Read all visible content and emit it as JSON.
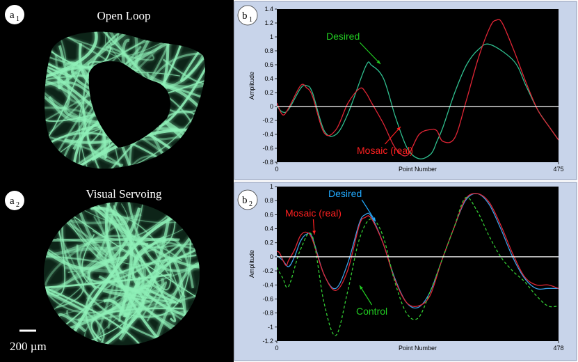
{
  "panels": {
    "a1": {
      "badge": "a",
      "sub": "1",
      "title": "Open Loop"
    },
    "a2": {
      "badge": "a",
      "sub": "2",
      "title": "Visual Servoing"
    },
    "b1": {
      "badge": "b",
      "sub": "1"
    },
    "b2": {
      "badge": "b",
      "sub": "2"
    }
  },
  "scale_bar": {
    "label": "200 µm"
  },
  "colors": {
    "fiber": "#8ff0b8",
    "desired_b1": "#2fbf8f",
    "mosaic": "#e02535",
    "desired_b2": "#3aa0e8",
    "control": "#33cc33",
    "zero_line": "#ffffff",
    "desired_label_b1": "#22cc22",
    "desired_label_b2": "#22aaff",
    "mosaic_label": "#ff2020",
    "control_label": "#22cc22",
    "panel_bg": "#c8d4ea",
    "plot_bg": "#000000"
  },
  "chart_data": [
    {
      "id": "b1",
      "type": "line",
      "xlabel": "Point Number",
      "ylabel": "Amplitude",
      "xlim": [
        0,
        475
      ],
      "ylim": [
        -0.8,
        1.4
      ],
      "yticks": [
        -0.8,
        -0.6,
        -0.4,
        -0.2,
        0,
        0.2,
        0.4,
        0.6,
        0.8,
        1,
        1.2,
        1.4
      ],
      "xticks": [
        0,
        475
      ],
      "annotations": [
        {
          "text": "Desired",
          "color_key": "desired_label_b1"
        },
        {
          "text": "Mosaic (real)",
          "color_key": "mosaic_label"
        }
      ],
      "series": [
        {
          "name": "Desired",
          "color_key": "desired_b1",
          "dash": false,
          "x": [
            0,
            10,
            20,
            40,
            50,
            60,
            80,
            100,
            120,
            150,
            160,
            180,
            200,
            220,
            240,
            260,
            270,
            280,
            300,
            320,
            340,
            360,
            400,
            420,
            440,
            460,
            475
          ],
          "y": [
            0,
            -0.08,
            -0.04,
            0.26,
            0.3,
            0.2,
            -0.35,
            -0.4,
            -0.1,
            0.58,
            0.59,
            0.4,
            -0.15,
            -0.6,
            -0.75,
            -0.68,
            -0.5,
            -0.3,
            0.2,
            0.6,
            0.82,
            0.89,
            0.65,
            0.3,
            -0.05,
            -0.3,
            -0.48
          ]
        },
        {
          "name": "Mosaic (real)",
          "color_key": "mosaic",
          "dash": false,
          "x": [
            0,
            10,
            20,
            40,
            50,
            60,
            80,
            100,
            120,
            140,
            150,
            160,
            180,
            200,
            220,
            240,
            260,
            270,
            280,
            300,
            320,
            340,
            360,
            370,
            380,
            400,
            420,
            440,
            460,
            475
          ],
          "y": [
            0.05,
            -0.12,
            -0.02,
            0.3,
            0.27,
            0.15,
            -0.38,
            -0.33,
            0.05,
            0.26,
            0.2,
            0.05,
            -0.25,
            -0.6,
            -0.7,
            -0.4,
            -0.33,
            -0.35,
            -0.5,
            -0.45,
            0.1,
            0.7,
            1.15,
            1.24,
            1.2,
            0.8,
            0.35,
            -0.05,
            -0.3,
            -0.48
          ]
        },
        {
          "name": "",
          "color_key": "zero_line",
          "dash": false,
          "x": [
            0,
            475
          ],
          "y": [
            0,
            0
          ]
        }
      ]
    },
    {
      "id": "b2",
      "type": "line",
      "xlabel": "Point Number",
      "ylabel": "Amplitude",
      "xlim": [
        0,
        478
      ],
      "ylim": [
        -1.2,
        1.0
      ],
      "yticks": [
        -1.2,
        -1,
        -0.8,
        -0.6,
        -0.4,
        -0.2,
        0,
        0.2,
        0.4,
        0.6,
        0.8,
        1
      ],
      "xticks": [
        0,
        478
      ],
      "annotations": [
        {
          "text": "Desired",
          "color_key": "desired_label_b2"
        },
        {
          "text": "Mosaic (real)",
          "color_key": "mosaic_label"
        },
        {
          "text": "Control",
          "color_key": "control_label"
        }
      ],
      "series": [
        {
          "name": "Desired",
          "color_key": "desired_b2",
          "dash": false,
          "x": [
            0,
            10,
            20,
            30,
            40,
            50,
            60,
            80,
            100,
            120,
            140,
            150,
            160,
            180,
            200,
            220,
            240,
            260,
            280,
            300,
            320,
            340,
            360,
            380,
            400,
            420,
            440,
            460,
            478
          ],
          "y": [
            0.02,
            -0.05,
            -0.14,
            0,
            0.22,
            0.32,
            0.28,
            -0.25,
            -0.45,
            -0.1,
            0.48,
            0.6,
            0.58,
            0.2,
            -0.3,
            -0.65,
            -0.72,
            -0.5,
            -0.05,
            0.4,
            0.8,
            0.9,
            0.75,
            0.4,
            0.0,
            -0.3,
            -0.45,
            -0.45,
            -0.45
          ]
        },
        {
          "name": "Mosaic (real)",
          "color_key": "mosaic",
          "dash": false,
          "x": [
            0,
            5,
            15,
            20,
            30,
            40,
            50,
            60,
            80,
            100,
            120,
            140,
            150,
            160,
            180,
            200,
            220,
            240,
            260,
            280,
            300,
            320,
            340,
            360,
            380,
            400,
            420,
            440,
            460,
            478
          ],
          "y": [
            0.08,
            0.05,
            -0.12,
            -0.05,
            0.1,
            0.3,
            0.35,
            0.25,
            -0.25,
            -0.48,
            -0.2,
            0.45,
            0.56,
            0.55,
            0.2,
            -0.32,
            -0.65,
            -0.7,
            -0.55,
            -0.05,
            0.4,
            0.82,
            0.9,
            0.78,
            0.45,
            0.05,
            -0.28,
            -0.4,
            -0.4,
            -0.45
          ]
        },
        {
          "name": "Control",
          "color_key": "control",
          "dash": true,
          "x": [
            0,
            10,
            20,
            40,
            60,
            80,
            100,
            120,
            140,
            160,
            180,
            200,
            220,
            240,
            260,
            280,
            300,
            320,
            340,
            360,
            380,
            400,
            420,
            440,
            460,
            478
          ],
          "y": [
            -0.15,
            -0.3,
            -0.42,
            0.1,
            0.3,
            -0.65,
            -1.12,
            -0.5,
            0.25,
            0.54,
            0.3,
            -0.35,
            -0.8,
            -0.87,
            -0.5,
            -0.05,
            0.4,
            0.84,
            0.65,
            0.3,
            0.0,
            -0.2,
            -0.35,
            -0.55,
            -0.7,
            -0.7
          ]
        },
        {
          "name": "",
          "color_key": "zero_line",
          "dash": false,
          "x": [
            0,
            478
          ],
          "y": [
            0,
            0
          ]
        }
      ]
    }
  ]
}
